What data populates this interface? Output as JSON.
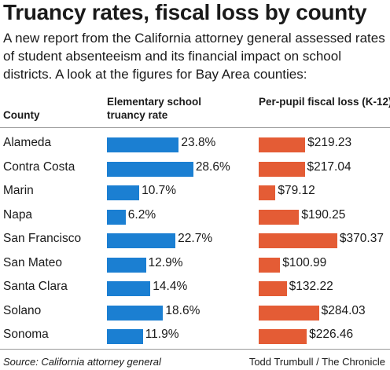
{
  "title": "Truancy rates, fiscal loss by county",
  "subtitle": "A new report from the California attorney general assessed rates of student absenteeism and its financial impact on school districts. A look at the figures for Bay Area counties:",
  "headers": {
    "county": "County",
    "rate": "Elementary school truancy rate",
    "loss": "Per-pupil fiscal loss (K-12)"
  },
  "footer": {
    "source": "Source: California attorney general",
    "credit": "Todd Trumbull / The Chronicle"
  },
  "colors": {
    "rate_bar": "#1b7fd2",
    "loss_bar": "#e45c35"
  },
  "chart_data": {
    "type": "bar",
    "categories": [
      "Alameda",
      "Contra Costa",
      "Marin",
      "Napa",
      "San Francisco",
      "San Mateo",
      "Santa Clara",
      "Solano",
      "Sonoma"
    ],
    "series": [
      {
        "name": "Elementary school truancy rate",
        "values": [
          23.8,
          28.6,
          10.7,
          6.2,
          22.7,
          12.9,
          14.4,
          18.6,
          11.9
        ],
        "labels": [
          "23.8%",
          "28.6%",
          "10.7%",
          "6.2%",
          "22.7%",
          "12.9%",
          "14.4%",
          "18.6%",
          "11.9%"
        ]
      },
      {
        "name": "Per-pupil fiscal loss (K-12)",
        "values": [
          219.23,
          217.04,
          79.12,
          190.25,
          370.37,
          100.99,
          132.22,
          284.03,
          226.46
        ],
        "labels": [
          "$219.23",
          "$217.04",
          "$79.12",
          "$190.25",
          "$370.37",
          "$100.99",
          "$132.22",
          "$284.03",
          "$226.46"
        ]
      }
    ]
  }
}
